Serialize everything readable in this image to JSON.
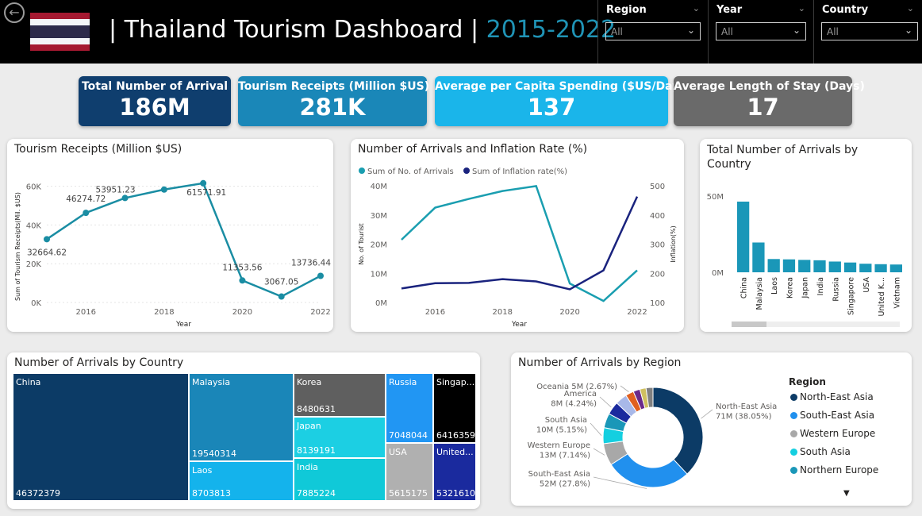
{
  "header": {
    "title_main": "| Thailand Tourism Dashboard |",
    "title_years": "2015-2022",
    "back_icon": "back-arrow-icon"
  },
  "slicers": [
    {
      "label": "Region",
      "value": "All"
    },
    {
      "label": "Year",
      "value": "All"
    },
    {
      "label": "Country",
      "value": "All"
    }
  ],
  "kpis": [
    {
      "label": "Total Number of Arrival",
      "value": "186M",
      "color": "#0f3e6e"
    },
    {
      "label": "Tourism Receipts (Million $US)",
      "value": "281K",
      "color": "#1a87b8"
    },
    {
      "label": "Average per Capita Spending ($US/Day)",
      "value": "137",
      "color": "#1ab5ea"
    },
    {
      "label": "Average Length of Stay (Days)",
      "value": "17",
      "color": "#6a6a6a"
    }
  ],
  "chart_data": [
    {
      "type": "line",
      "title": "Tourism Receipts (Million $US)",
      "xlabel": "Year",
      "ylabel": "Sum of Tourism Receipts(Mil. $US)",
      "x": [
        2015,
        2016,
        2017,
        2018,
        2019,
        2020,
        2021,
        2022
      ],
      "x_ticks": [
        "2016",
        "2018",
        "2020",
        "2022"
      ],
      "y_ticks": [
        "0K",
        "20K",
        "40K",
        "60K"
      ],
      "ylim": [
        0,
        66000
      ],
      "series": [
        {
          "values": [
            32664.62,
            46274.72,
            53951.23,
            58300,
            61571.91,
            11353.56,
            3067.05,
            13736.44
          ],
          "color": "#1a8da3"
        }
      ],
      "data_labels": [
        "32664.62",
        "46274.72",
        "53951.23",
        "",
        "61571.91",
        "11353.56",
        "3067.05",
        "13736.44"
      ]
    },
    {
      "type": "line",
      "title": "Number of Arrivals and Inflation Rate (%)",
      "xlabel": "Year",
      "ylabel": "No. of Tourist",
      "y2label": "Inflation(%)",
      "x": [
        2015,
        2016,
        2017,
        2018,
        2019,
        2020,
        2021,
        2022
      ],
      "x_ticks": [
        "2016",
        "2018",
        "2020",
        "2022"
      ],
      "y_ticks": [
        "0M",
        "10M",
        "20M",
        "30M",
        "40M"
      ],
      "y2_ticks": [
        "100",
        "200",
        "300",
        "400",
        "500"
      ],
      "ylim": [
        0,
        40000000
      ],
      "y2lim": [
        100,
        500
      ],
      "series": [
        {
          "name": "Sum of No. of Arrivals",
          "axis": "left",
          "values": [
            21500000,
            32500000,
            35500000,
            38200000,
            39900000,
            6500000,
            500000,
            11000000
          ],
          "color": "#1a9eb0"
        },
        {
          "name": "Sum of Inflation rate(%)",
          "axis": "right",
          "values": [
            148,
            166,
            167,
            180,
            172,
            145,
            210,
            463
          ],
          "color": "#1a237e"
        }
      ]
    },
    {
      "type": "bar",
      "title": "Total Number of Arrivals by Country",
      "categories": [
        "China",
        "Malaysia",
        "Laos",
        "Korea",
        "Japan",
        "India",
        "Russia",
        "Singapore",
        "USA",
        "United K...",
        "Vietnam"
      ],
      "values": [
        46372379,
        19540314,
        8703813,
        8480631,
        8139191,
        7885224,
        7048044,
        6416359,
        5615175,
        5321610,
        5100000
      ],
      "y_ticks": [
        "0M",
        "50M"
      ],
      "ylim": [
        0,
        50000000
      ],
      "color": "#1a97b8"
    },
    {
      "type": "treemap",
      "title": "Number of Arrivals by Country",
      "items": [
        {
          "name": "China",
          "value": "46372379",
          "color": "#0c3b66"
        },
        {
          "name": "Malaysia",
          "value": "19540314",
          "color": "#1a86b8"
        },
        {
          "name": "Laos",
          "value": "8703813",
          "color": "#14b3ec"
        },
        {
          "name": "Korea",
          "value": "8480631",
          "color": "#5f5f5f"
        },
        {
          "name": "Japan",
          "value": "8139191",
          "color": "#1ccfe3"
        },
        {
          "name": "India",
          "value": "7885224",
          "color": "#10c9d8"
        },
        {
          "name": "Russia",
          "value": "7048044",
          "color": "#2196f3"
        },
        {
          "name": "Singap...",
          "value": "6416359",
          "color": "#000000"
        },
        {
          "name": "USA",
          "value": "5615175",
          "color": "#b0b0b0"
        },
        {
          "name": "United...",
          "value": "5321610",
          "color": "#1a2a9e"
        }
      ]
    },
    {
      "type": "pie",
      "title": "Number of Arrivals by Region",
      "legend_title": "Region",
      "slices": [
        {
          "name": "North-East Asia",
          "label": "North-East Asia\n71M (38.05%)",
          "percent": 38.05,
          "color": "#0c3b66"
        },
        {
          "name": "South-East Asia",
          "label": "South-East Asia\n52M (27.8%)",
          "percent": 27.8,
          "color": "#2190ee"
        },
        {
          "name": "Western Europe",
          "label": "Western Europe\n13M (7.14%)",
          "percent": 7.14,
          "color": "#a8a8a8"
        },
        {
          "name": "South Asia",
          "label": "South Asia\n10M (5.15%)",
          "percent": 5.15,
          "color": "#14cfe0"
        },
        {
          "name": "Northern Europe",
          "label": "",
          "percent": 4.7,
          "color": "#1a97b8"
        },
        {
          "name": "America",
          "label": "America\n8M (4.24%)",
          "percent": 4.24,
          "color": "#1a2a9e"
        },
        {
          "name": "",
          "label": "",
          "percent": 3.8,
          "color": "#a8b8e8"
        },
        {
          "name": "Oceania",
          "label": "Oceania 5M (2.67%)",
          "percent": 2.67,
          "color": "#e06020"
        },
        {
          "name": "",
          "label": "",
          "percent": 2.2,
          "color": "#6a2a8a"
        },
        {
          "name": "",
          "label": "",
          "percent": 2.0,
          "color": "#d0c060"
        },
        {
          "name": "",
          "label": "",
          "percent": 2.25,
          "color": "#808080"
        }
      ],
      "legend": [
        "North-East Asia",
        "South-East Asia",
        "Western Europe",
        "South Asia",
        "Northern Europe"
      ]
    }
  ]
}
